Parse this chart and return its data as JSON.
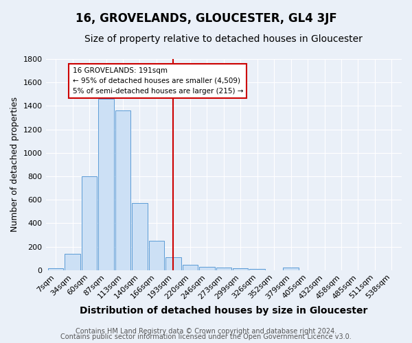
{
  "title": "16, GROVELANDS, GLOUCESTER, GL4 3JF",
  "subtitle": "Size of property relative to detached houses in Gloucester",
  "xlabel": "Distribution of detached houses by size in Gloucester",
  "ylabel": "Number of detached properties",
  "bin_labels": [
    "7sqm",
    "34sqm",
    "60sqm",
    "87sqm",
    "113sqm",
    "140sqm",
    "166sqm",
    "193sqm",
    "220sqm",
    "246sqm",
    "273sqm",
    "299sqm",
    "326sqm",
    "352sqm",
    "379sqm",
    "405sqm",
    "432sqm",
    "458sqm",
    "485sqm",
    "511sqm",
    "538sqm"
  ],
  "bar_heights": [
    15,
    140,
    800,
    1460,
    1360,
    570,
    250,
    110,
    45,
    30,
    20,
    15,
    10,
    0,
    25,
    0,
    0,
    0,
    0,
    0,
    0
  ],
  "bar_color": "#cce0f5",
  "bar_edge_color": "#5b9bd5",
  "vline_x_index": 7,
  "vline_color": "#cc0000",
  "annotation_text": "16 GROVELANDS: 191sqm\n← 95% of detached houses are smaller (4,509)\n5% of semi-detached houses are larger (215) →",
  "annotation_box_color": "#ffffff",
  "annotation_box_edge_color": "#cc0000",
  "ylim": [
    0,
    1800
  ],
  "yticks": [
    0,
    200,
    400,
    600,
    800,
    1000,
    1200,
    1400,
    1600,
    1800
  ],
  "footer_line1": "Contains HM Land Registry data © Crown copyright and database right 2024.",
  "footer_line2": "Contains public sector information licensed under the Open Government Licence v3.0.",
  "background_color": "#eaf0f8",
  "plot_background_color": "#eaf0f8",
  "grid_color": "#ffffff",
  "title_fontsize": 12,
  "subtitle_fontsize": 10,
  "xlabel_fontsize": 10,
  "ylabel_fontsize": 9,
  "tick_fontsize": 8,
  "footer_fontsize": 7
}
